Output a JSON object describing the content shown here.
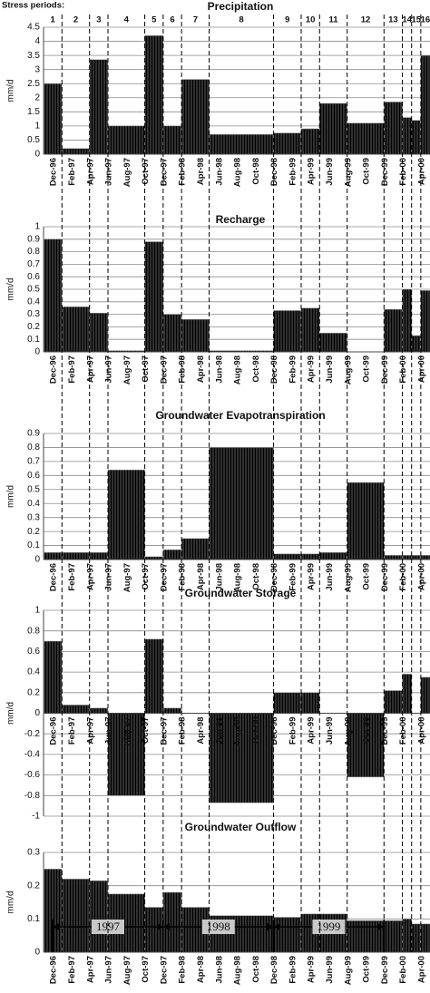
{
  "stress_periods": {
    "label": "Stress periods:",
    "names": [
      "1",
      "2",
      "3",
      "4",
      "5",
      "6",
      "7",
      "8",
      "9",
      "10",
      "11",
      "12",
      "13",
      "14",
      "15",
      "16"
    ],
    "months": [
      2,
      3,
      2,
      4,
      2,
      2,
      3,
      7,
      3,
      2,
      3,
      4,
      2,
      1,
      1,
      1
    ]
  },
  "chart_data": [
    {
      "type": "bar",
      "title": "Precipitation",
      "y_label": "mm/d",
      "x_labels": [
        "Dec-96",
        "Feb-97",
        "Apr-97",
        "Jun-97",
        "Aug-97",
        "Oct-97",
        "Dec-97",
        "Feb-98",
        "Apr-98",
        "Jun-98",
        "Aug-98",
        "Oct-98",
        "Dec-98",
        "Feb-99",
        "Apr-99",
        "Jun-99",
        "Aug-99",
        "Oct-99",
        "Dec-99",
        "Feb-00",
        "Apr-00"
      ],
      "values": [
        2.5,
        0.2,
        3.35,
        1.0,
        4.2,
        1.0,
        2.65,
        0.7,
        0.75,
        0.9,
        1.8,
        1.1,
        1.85,
        1.3,
        1.2,
        3.5
      ],
      "color": "#b4b4b4",
      "ylim": [
        0,
        4.5
      ],
      "yticks": [
        0,
        0.5,
        1,
        1.5,
        2,
        2.5,
        3,
        3.5,
        4,
        4.5
      ],
      "grid": true
    },
    {
      "type": "bar",
      "title": "Recharge",
      "y_label": "mm/d",
      "x_labels": [
        "Dec-96",
        "Feb-97",
        "Apr-97",
        "Jun-97",
        "Aug-97",
        "Oct-97",
        "Dec-97",
        "Feb-98",
        "Apr-98",
        "Jun-98",
        "Aug-98",
        "Oct-98",
        "Dec-98",
        "Feb-99",
        "Apr-99",
        "Jun-99",
        "Aug-99",
        "Oct-99",
        "Dec-99",
        "Feb-00",
        "Apr-00"
      ],
      "values": [
        0.9,
        0.36,
        0.31,
        0.01,
        0.88,
        0.3,
        0.26,
        0.01,
        0.33,
        0.35,
        0.15,
        0.0,
        0.34,
        0.5,
        0.13,
        0.49
      ],
      "color": "#b4b4b4",
      "ylim": [
        0,
        1
      ],
      "yticks": [
        0,
        0.1,
        0.2,
        0.3,
        0.4,
        0.5,
        0.6,
        0.7,
        0.8,
        0.9,
        1
      ],
      "grid": true
    },
    {
      "type": "bar",
      "title": "Groundwater Evapotranspiration",
      "y_label": "mm/d",
      "x_labels": [
        "Dec-96",
        "Feb-97",
        "Apr-97",
        "Jun-97",
        "Aug-97",
        "Oct-97",
        "Dec-97",
        "Feb-98",
        "Apr-98",
        "Jun-98",
        "Aug-98",
        "Oct-98",
        "Dec-98",
        "Feb-99",
        "Apr-99",
        "Jun-99",
        "Aug-99",
        "Oct-99",
        "Dec-99",
        "Feb-00",
        "Apr-00"
      ],
      "values": [
        0.05,
        0.05,
        0.05,
        0.64,
        0.02,
        0.07,
        0.15,
        0.8,
        0.04,
        0.04,
        0.05,
        0.55,
        0.03,
        0.03,
        0.03,
        0.03
      ],
      "color": "#b4b4b4",
      "ylim": [
        0,
        0.9
      ],
      "yticks": [
        0,
        0.1,
        0.2,
        0.3,
        0.4,
        0.5,
        0.6,
        0.7,
        0.8,
        0.9
      ],
      "grid": true
    },
    {
      "type": "bar",
      "title": "Groundwater Storage",
      "y_label": "mm/d",
      "x_labels": [
        "Dec-96",
        "Feb-97",
        "Apr-97",
        "Jun-97",
        "Aug-97",
        "Oct-97",
        "Dec-97",
        "Feb-98",
        "Apr-98",
        "Jun-98",
        "Aug-98",
        "Oct-98",
        "Dec-98",
        "Feb-99",
        "Apr-99",
        "Jun-99",
        "Aug-99",
        "Oct-99",
        "Dec-99",
        "Feb-00",
        "Apr-00"
      ],
      "values": [
        0.7,
        0.08,
        0.05,
        -0.8,
        0.72,
        0.05,
        0.0,
        -0.87,
        0.2,
        0.2,
        0.0,
        -0.62,
        0.22,
        0.38,
        0.0,
        0.35
      ],
      "color": "#b4b4b4",
      "ylim": [
        -1,
        1
      ],
      "yticks": [
        -1,
        -0.8,
        -0.6,
        -0.4,
        -0.2,
        0,
        0.2,
        0.4,
        0.6,
        0.8,
        1
      ],
      "grid": true
    },
    {
      "type": "bar",
      "title": "Groundwater Outflow",
      "y_label": "mm/d",
      "x_labels": [
        "Dec-96",
        "Feb-97",
        "Apr-97",
        "Jun-97",
        "Aug-97",
        "Oct-97",
        "Dec-97",
        "Feb-98",
        "Apr-98",
        "Jun-98",
        "Aug-98",
        "Oct-98",
        "Dec-98",
        "Feb-99",
        "Apr-99",
        "Jun-99",
        "Aug-99",
        "Oct-99",
        "Dec-99",
        "Feb-00",
        "Apr-00"
      ],
      "values": [
        0.25,
        0.22,
        0.215,
        0.175,
        0.135,
        0.18,
        0.135,
        0.11,
        0.105,
        0.115,
        0.115,
        0.095,
        0.095,
        0.1,
        0.085,
        0.085
      ],
      "color": "#b4b4b4",
      "ylim": [
        0,
        0.3
      ],
      "yticks": [
        0,
        0.1,
        0.2,
        0.3
      ],
      "grid": true,
      "annotations": [
        "1997",
        "1998",
        "1999"
      ]
    }
  ]
}
